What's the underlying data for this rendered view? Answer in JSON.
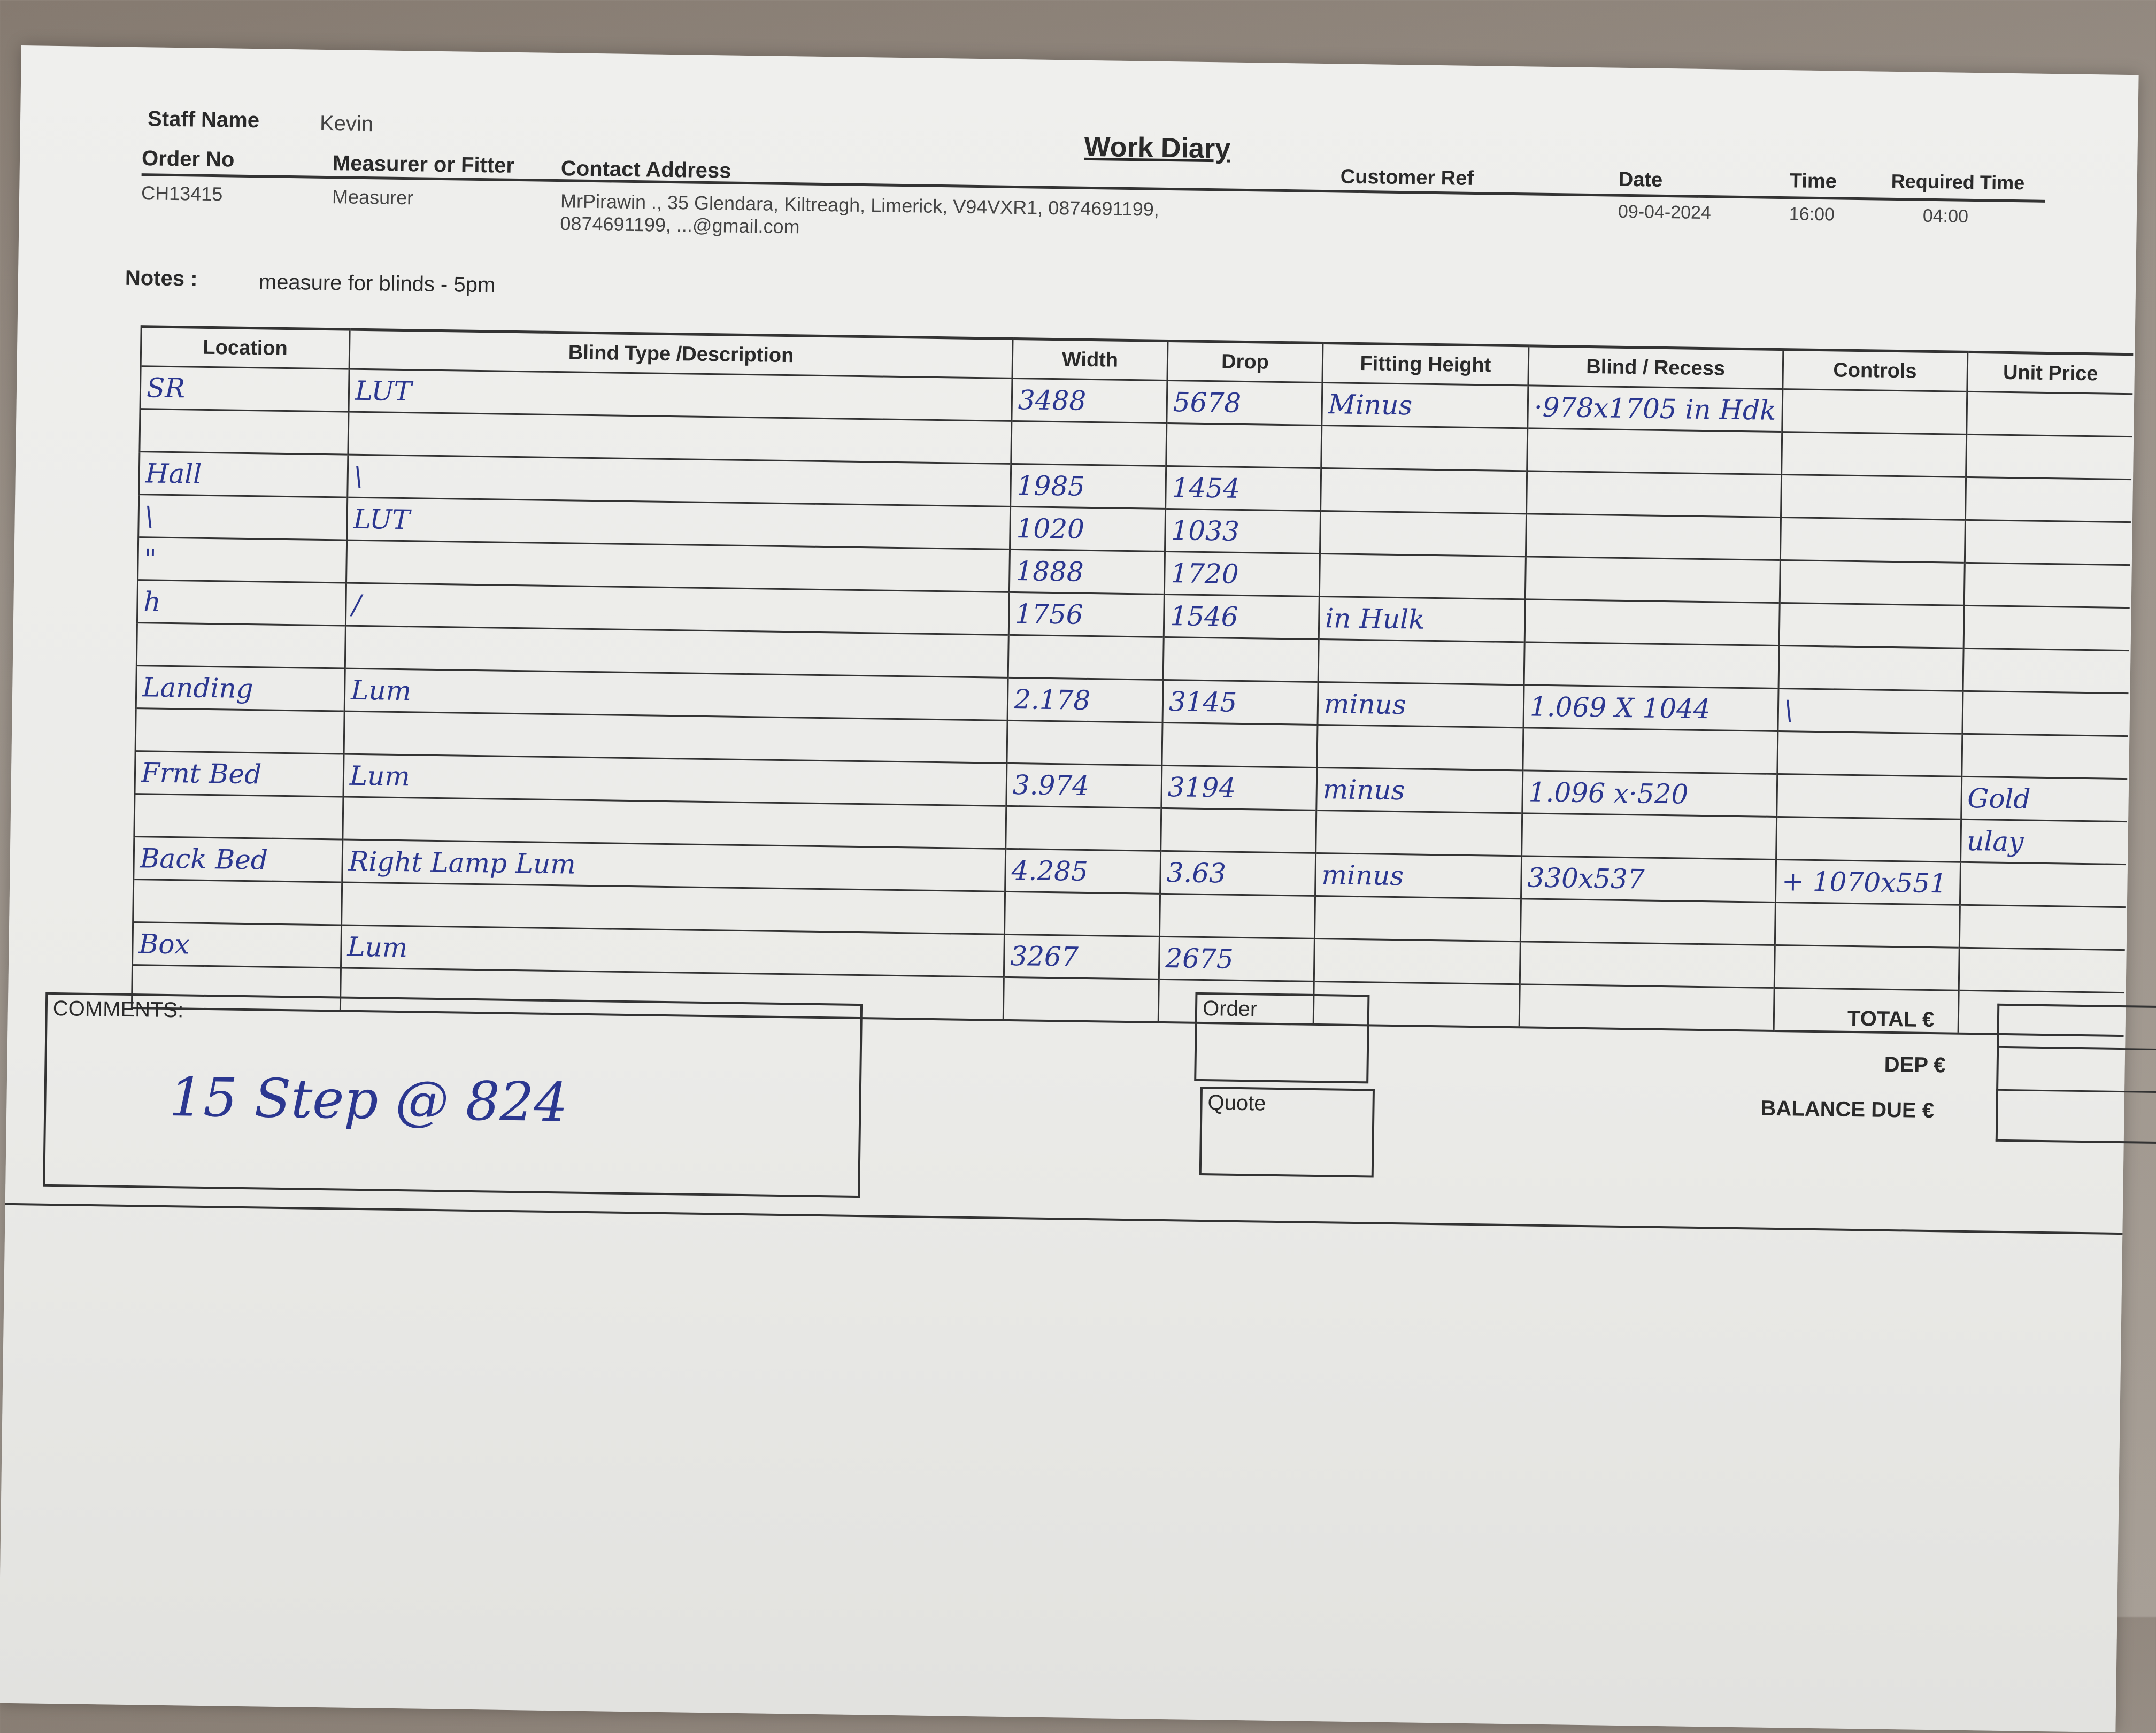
{
  "header": {
    "staff_name_label": "Staff Name",
    "staff_name": "Kevin",
    "title": "Work Diary",
    "order_no_label": "Order No",
    "order_no": "CH13415",
    "role_label": "Measurer or Fitter",
    "role": "Measurer",
    "address_label": "Contact Address",
    "address_line1": "MrPirawin ., 35 Glendara, Kiltreagh, Limerick, V94VXR1, 0874691199,",
    "address_line2": "0874691199, ...@gmail.com",
    "customer_ref_label": "Customer Ref",
    "date_label": "Date",
    "date": "09-04-2024",
    "time_label": "Time",
    "time": "16:00",
    "required_time_label": "Required Time",
    "required_time": "04:00"
  },
  "notes": {
    "label": "Notes :",
    "text": "measure for blinds - 5pm"
  },
  "table": {
    "columns": [
      "Location",
      "Blind Type /Description",
      "Width",
      "Drop",
      "Fitting Height",
      "Blind / Recess",
      "Controls",
      "Unit Price"
    ],
    "rows": [
      [
        "SR",
        "LUT",
        "3488",
        "5678",
        "Minus",
        "·978x1705 in Hdk",
        "",
        ""
      ],
      [
        "",
        "",
        "",
        "",
        "",
        "",
        "",
        ""
      ],
      [
        "Hall",
        "\\",
        "1985",
        "1454",
        "",
        "",
        "",
        ""
      ],
      [
        "\\",
        "LUT",
        "1020",
        "1033",
        "",
        "",
        "",
        ""
      ],
      [
        "\"",
        "",
        "1888",
        "1720",
        "",
        "",
        "",
        ""
      ],
      [
        "h",
        "/",
        "1756",
        "1546",
        "in Hulk",
        "",
        "",
        ""
      ],
      [
        "",
        "",
        "",
        "",
        "",
        "",
        "",
        ""
      ],
      [
        "Landing",
        "Lum",
        "2.178",
        "3145",
        "minus",
        "1.069 X 1044",
        "\\",
        ""
      ],
      [
        "",
        "",
        "",
        "",
        "",
        "",
        "",
        ""
      ],
      [
        "Frnt Bed",
        "Lum",
        "3.974",
        "3194",
        "minus",
        "1.096 x·520",
        "",
        "Gold"
      ],
      [
        "",
        "",
        "",
        "",
        "",
        "",
        "",
        "ulay"
      ],
      [
        "Back Bed",
        "Right Lamp Lum",
        "4.285",
        "3.63",
        "minus",
        "330x537",
        "+ 1070x551",
        ""
      ],
      [
        "",
        "",
        "",
        "",
        "",
        "",
        "",
        ""
      ],
      [
        "Box",
        "Lum",
        "3267",
        "2675",
        "",
        "",
        "",
        ""
      ],
      [
        "",
        "",
        "",
        "",
        "",
        "",
        "",
        ""
      ]
    ]
  },
  "comments": {
    "label": "COMMENTS:",
    "text": "15 Step @ 824"
  },
  "order_box": {
    "label": "Order"
  },
  "quote_box": {
    "label": "Quote"
  },
  "totals": {
    "total_label": "TOTAL €",
    "dep_label": "DEP €",
    "balance_label": "BALANCE DUE €"
  },
  "colors": {
    "ink": "#2b3790",
    "print": "#2a2a2a",
    "paper": "#efefed"
  }
}
